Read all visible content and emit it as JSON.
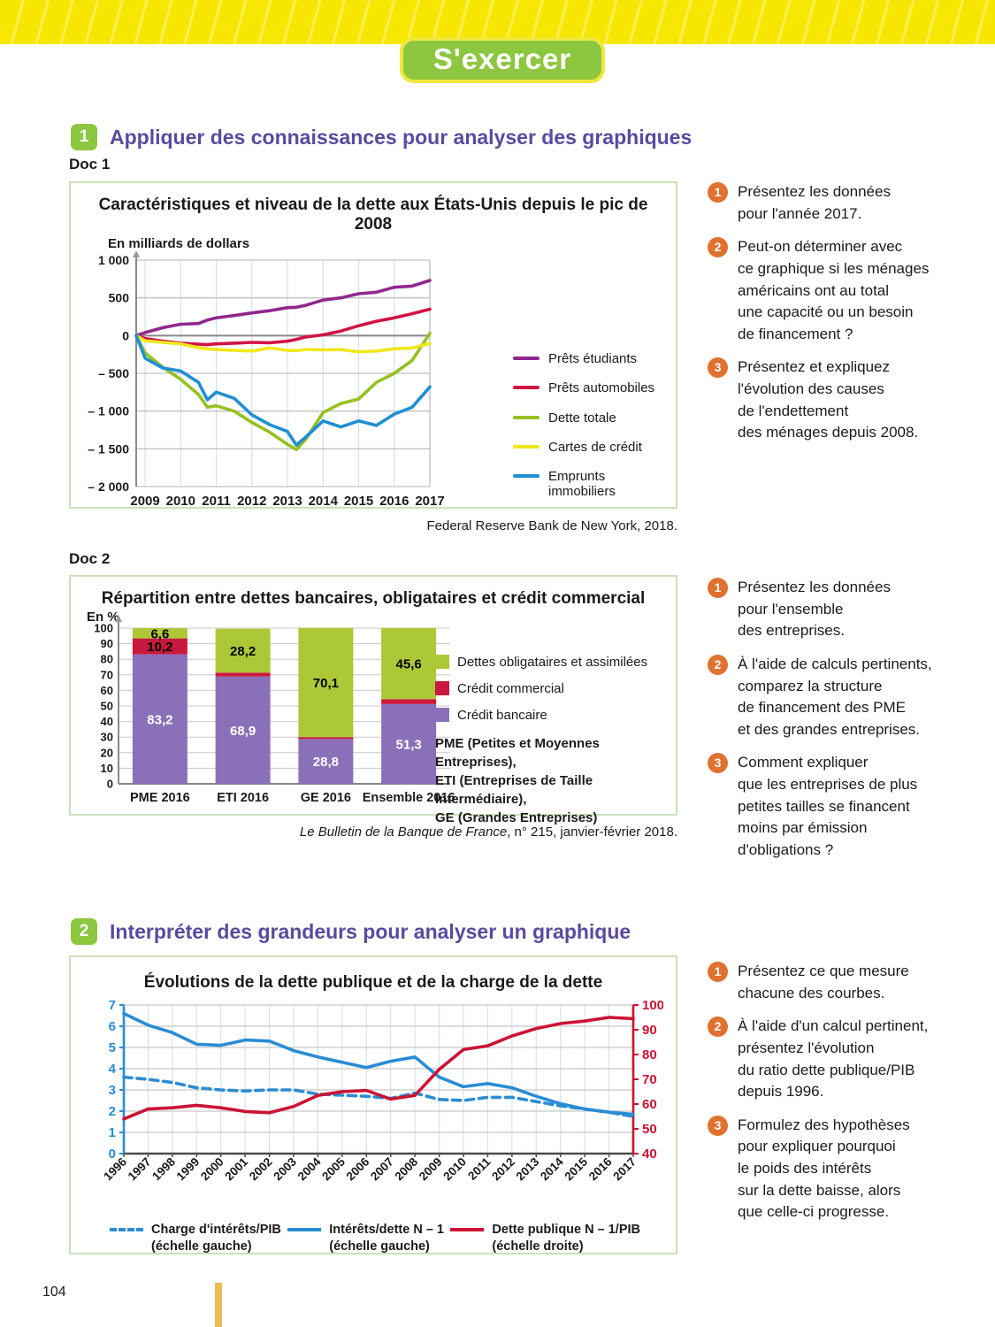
{
  "page": {
    "number": "104",
    "banner": "S'exercer"
  },
  "exercise1": {
    "number": "1",
    "title": "Appliquer des connaissances pour analyser des graphiques",
    "doc1_label": "Doc 1",
    "doc2_label": "Doc 2",
    "doc1_questions": [
      {
        "num": "1",
        "text": "Présentez les données\npour l'année 2017."
      },
      {
        "num": "2",
        "text": "Peut-on déterminer avec\nce graphique si les ménages\naméricains ont au total\nune capacité ou un besoin\nde financement ?"
      },
      {
        "num": "3",
        "text": "Présentez et expliquez\nl'évolution des causes\nde l'endettement\ndes ménages depuis 2008."
      }
    ],
    "doc2_questions": [
      {
        "num": "1",
        "text": "Présentez les données\npour l'ensemble\ndes entreprises."
      },
      {
        "num": "2",
        "text": "À l'aide de calculs pertinents,\ncomparez la structure\nde financement des PME\net des grandes entreprises."
      },
      {
        "num": "3",
        "text": "Comment expliquer\nque les entreprises de plus\npetites tailles se financent\nmoins par émission\nd'obligations ?"
      }
    ]
  },
  "exercise2": {
    "number": "2",
    "title": "Interpréter des grandeurs pour analyser un graphique",
    "questions": [
      {
        "num": "1",
        "text": "Présentez ce que mesure\nchacune des courbes."
      },
      {
        "num": "2",
        "text": "À l'aide d'un calcul pertinent,\nprésentez l'évolution\ndu ratio dette publique/PIB\ndepuis 1996."
      },
      {
        "num": "3",
        "text": "Formulez des hypothèses\npour expliquer pourquoi\nle poids des intérêts\nsur la dette baisse, alors\nque celle-ci progresse."
      }
    ]
  },
  "chart_data": [
    {
      "type": "line",
      "title": "Caractéristiques et niveau de la dette aux États-Unis depuis le pic de 2008",
      "unit_label": "En milliards de dollars",
      "source": "Federal Reserve Bank de New York, 2018.",
      "x": [
        2008.75,
        2009,
        2009.5,
        2010,
        2010.5,
        2010.75,
        2011,
        2011.5,
        2012,
        2012.5,
        2013,
        2013.25,
        2013.5,
        2014,
        2014.5,
        2015,
        2015.5,
        2016,
        2016.5,
        2017
      ],
      "xticks": [
        2009,
        2010,
        2011,
        2012,
        2013,
        2014,
        2015,
        2016,
        2017
      ],
      "ylim": [
        -2000,
        1000
      ],
      "yticks": [
        {
          "v": 1000,
          "label": "1 000"
        },
        {
          "v": 500,
          "label": "500"
        },
        {
          "v": 0,
          "label": "0"
        },
        {
          "v": -500,
          "label": "– 500"
        },
        {
          "v": -1000,
          "label": "– 1 000"
        },
        {
          "v": -1500,
          "label": "– 1 500"
        },
        {
          "v": -2000,
          "label": "– 2 000"
        }
      ],
      "series": [
        {
          "name": "Prêts étudiants",
          "color": "#91278f",
          "values": [
            0,
            40,
            105,
            150,
            160,
            205,
            235,
            265,
            300,
            330,
            370,
            375,
            400,
            470,
            500,
            555,
            575,
            640,
            655,
            730
          ]
        },
        {
          "name": "Prêts automobiles",
          "color": "#d31245",
          "values": [
            0,
            -40,
            -75,
            -100,
            -115,
            -120,
            -110,
            -100,
            -90,
            -95,
            -75,
            -50,
            -20,
            10,
            60,
            130,
            190,
            235,
            290,
            350
          ]
        },
        {
          "name": "Dette totale",
          "color": "#95c11f",
          "values": [
            0,
            -230,
            -420,
            -580,
            -780,
            -950,
            -930,
            -1000,
            -1150,
            -1280,
            -1440,
            -1510,
            -1380,
            -1020,
            -900,
            -840,
            -620,
            -500,
            -330,
            30
          ]
        },
        {
          "name": "Cartes de crédit",
          "color": "#f2e71c",
          "values": [
            0,
            -70,
            -90,
            -110,
            -160,
            -175,
            -185,
            -195,
            -205,
            -165,
            -195,
            -200,
            -185,
            -190,
            -185,
            -215,
            -205,
            -175,
            -165,
            -105
          ]
        },
        {
          "name": "Emprunts\nimmobiliers",
          "color": "#1f8fd5",
          "values": [
            0,
            -300,
            -430,
            -470,
            -620,
            -850,
            -750,
            -830,
            -1050,
            -1180,
            -1270,
            -1450,
            -1350,
            -1130,
            -1210,
            -1130,
            -1190,
            -1040,
            -950,
            -680
          ]
        }
      ]
    },
    {
      "type": "stacked-bar",
      "title": "Répartition entre dettes bancaires, obligataires et crédit commercial",
      "unit_label": "En %",
      "source_italic": "Le Bulletin de la Banque de France",
      "source_rest": ", n° 215, janvier-février 2018.",
      "categories": [
        "PME 2016",
        "ETI 2016",
        "GE 2016",
        "Ensemble 2016"
      ],
      "ylim": [
        0,
        100
      ],
      "series": [
        {
          "name": "Crédit bancaire",
          "color": "#8a70b8",
          "label_color": "#ffffff",
          "values": [
            83.2,
            68.9,
            28.8,
            51.3
          ]
        },
        {
          "name": "Crédit commercial",
          "color": "#c8193c",
          "label_color": "#000000",
          "values": [
            10.2,
            2.5,
            1.2,
            3.1
          ]
        },
        {
          "name": "Dettes obligataires et assimilées",
          "color": "#adc837",
          "label_color": "#000000",
          "values": [
            6.6,
            28.2,
            70.1,
            45.6
          ]
        }
      ],
      "notes": "PME (Petites et Moyennes Entreprises),\nETI (Entreprises de Taille Intermédiaire),\nGE (Grandes Entreprises)"
    },
    {
      "type": "line-dual-axis",
      "title": "Évolutions de la dette publique et de la charge de la dette",
      "x": [
        1996,
        1997,
        1998,
        1999,
        2000,
        2001,
        2002,
        2003,
        2004,
        2005,
        2006,
        2007,
        2008,
        2009,
        2010,
        2011,
        2012,
        2013,
        2014,
        2015,
        2016,
        2017
      ],
      "left_ylim": [
        0,
        7
      ],
      "right_ylim": [
        40,
        100
      ],
      "series": [
        {
          "name": "Charge d'intérêts/PIB\n(échelle gauche)",
          "axis": "left",
          "style": "dashed",
          "color": "#2a8cd4",
          "values": [
            3.6,
            3.5,
            3.35,
            3.1,
            3.0,
            2.95,
            3.0,
            3.0,
            2.8,
            2.75,
            2.7,
            2.6,
            2.85,
            2.55,
            2.5,
            2.65,
            2.65,
            2.45,
            2.25,
            2.1,
            1.95,
            1.75
          ]
        },
        {
          "name": "Intérêts/dette N – 1\n(échelle gauche)",
          "axis": "left",
          "style": "solid",
          "color": "#2a8cd4",
          "values": [
            6.6,
            6.05,
            5.7,
            5.15,
            5.1,
            5.35,
            5.3,
            4.85,
            4.55,
            4.3,
            4.05,
            4.35,
            4.55,
            3.6,
            3.15,
            3.3,
            3.1,
            2.7,
            2.35,
            2.1,
            1.95,
            1.85
          ]
        },
        {
          "name": "Dette publique N – 1/PIB\n(échelle droite)",
          "axis": "right",
          "style": "solid",
          "color": "#cc1334",
          "values": [
            54,
            58,
            58.5,
            59.5,
            58.5,
            57,
            56.5,
            59,
            63.5,
            65,
            65.5,
            62,
            63.5,
            74,
            82,
            83.5,
            87.5,
            90.5,
            92.5,
            93.5,
            95,
            94.5
          ]
        }
      ]
    }
  ]
}
